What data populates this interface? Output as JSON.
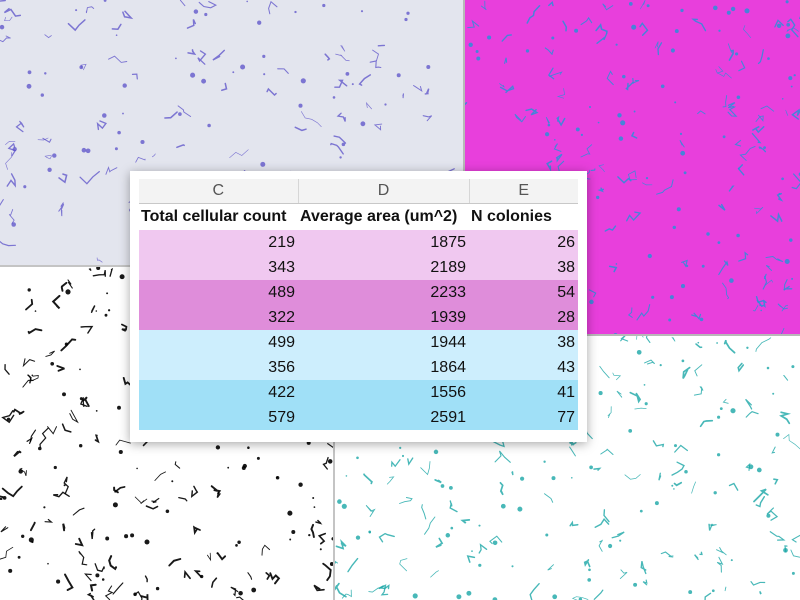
{
  "sheet": {
    "columns": [
      "C",
      "D",
      "E"
    ],
    "headers": [
      "Total cellular count",
      "Average area (um^2)",
      "N colonies"
    ],
    "rows": [
      [
        "219",
        "1875",
        "26"
      ],
      [
        "343",
        "2189",
        "38"
      ],
      [
        "489",
        "2233",
        "54"
      ],
      [
        "322",
        "1939",
        "28"
      ],
      [
        "499",
        "1944",
        "38"
      ],
      [
        "356",
        "1864",
        "43"
      ],
      [
        "422",
        "1556",
        "41"
      ],
      [
        "579",
        "2591",
        "77"
      ]
    ],
    "row_colors": [
      "#f0c8f0",
      "#f0c8f0",
      "#df8dda",
      "#df8dda",
      "#cdeefd",
      "#cdeefd",
      "#a0e0f7",
      "#a0e0f7"
    ]
  },
  "panels": {
    "top_left": {
      "background": "#e3e5ee",
      "stain": "#5a4fc8"
    },
    "top_right": {
      "background": "#e83fdc",
      "stain": "#2a8fd8"
    },
    "bottom_left": {
      "background": "#ffffff",
      "stain": "#000000"
    },
    "bottom_right": {
      "background": "#ffffff",
      "stain": "#1aa6a6"
    }
  }
}
